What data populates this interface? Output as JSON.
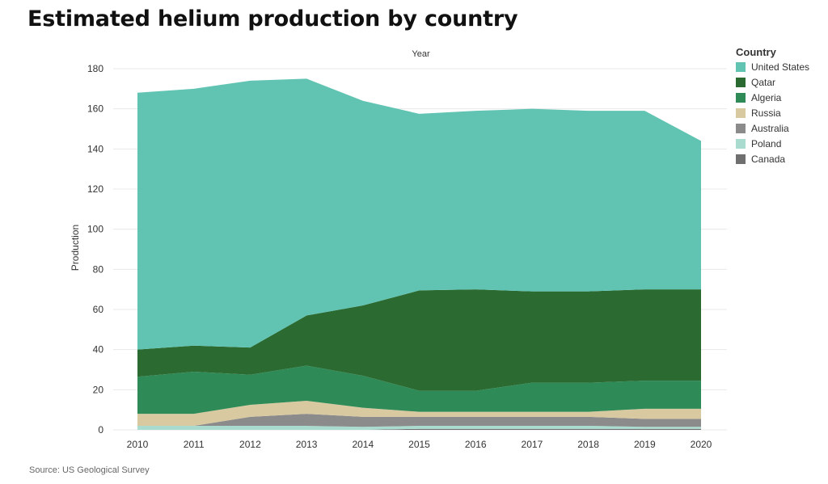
{
  "title": "Estimated helium production by country",
  "source": "Source: US Geological Survey",
  "colors": {
    "United States": "#61c4b3",
    "Qatar": "#2b6a31",
    "Algeria": "#2e8b57",
    "Russia": "#d9c9a0",
    "Australia": "#8b8b8b",
    "Poland": "#a9dccf",
    "Canada": "#6f6f6f"
  },
  "chart_data": {
    "type": "area",
    "stacked": true,
    "title": "Estimated helium production by country",
    "xlabel": "Year",
    "ylabel": "Production",
    "legend_title": "Country",
    "legend_position": "top-right",
    "x": [
      2010,
      2011,
      2012,
      2013,
      2014,
      2015,
      2016,
      2017,
      2018,
      2019,
      2020
    ],
    "ylim": [
      0,
      180
    ],
    "yticks": [
      0,
      20,
      40,
      60,
      80,
      100,
      120,
      140,
      160,
      180
    ],
    "grid": true,
    "series": [
      {
        "name": "Canada",
        "values": [
          0,
          0,
          0,
          0,
          0,
          0.5,
          0.5,
          0.5,
          0.5,
          0.5,
          0.5
        ]
      },
      {
        "name": "Poland",
        "values": [
          2,
          2,
          2,
          2,
          1.5,
          1.5,
          1.5,
          1.5,
          1.5,
          1,
          1
        ]
      },
      {
        "name": "Australia",
        "values": [
          0,
          0,
          4.5,
          6,
          5,
          4.5,
          4.5,
          4.5,
          4.5,
          4,
          4
        ]
      },
      {
        "name": "Russia",
        "values": [
          6,
          6,
          6,
          6.5,
          4.5,
          2.5,
          2.5,
          2.5,
          2.5,
          5,
          5
        ]
      },
      {
        "name": "Algeria",
        "values": [
          18.5,
          21,
          15,
          17.5,
          16,
          10.5,
          10.5,
          14.5,
          14.5,
          14,
          14
        ]
      },
      {
        "name": "Qatar",
        "values": [
          13.5,
          13,
          13.5,
          25,
          35,
          50,
          50.5,
          45.5,
          45.5,
          45.5,
          45.5
        ]
      },
      {
        "name": "United States",
        "values": [
          128,
          128,
          133,
          118,
          102,
          88,
          89,
          91,
          90,
          89,
          74
        ]
      }
    ],
    "legend_order": [
      "United States",
      "Qatar",
      "Algeria",
      "Russia",
      "Australia",
      "Poland",
      "Canada"
    ]
  }
}
